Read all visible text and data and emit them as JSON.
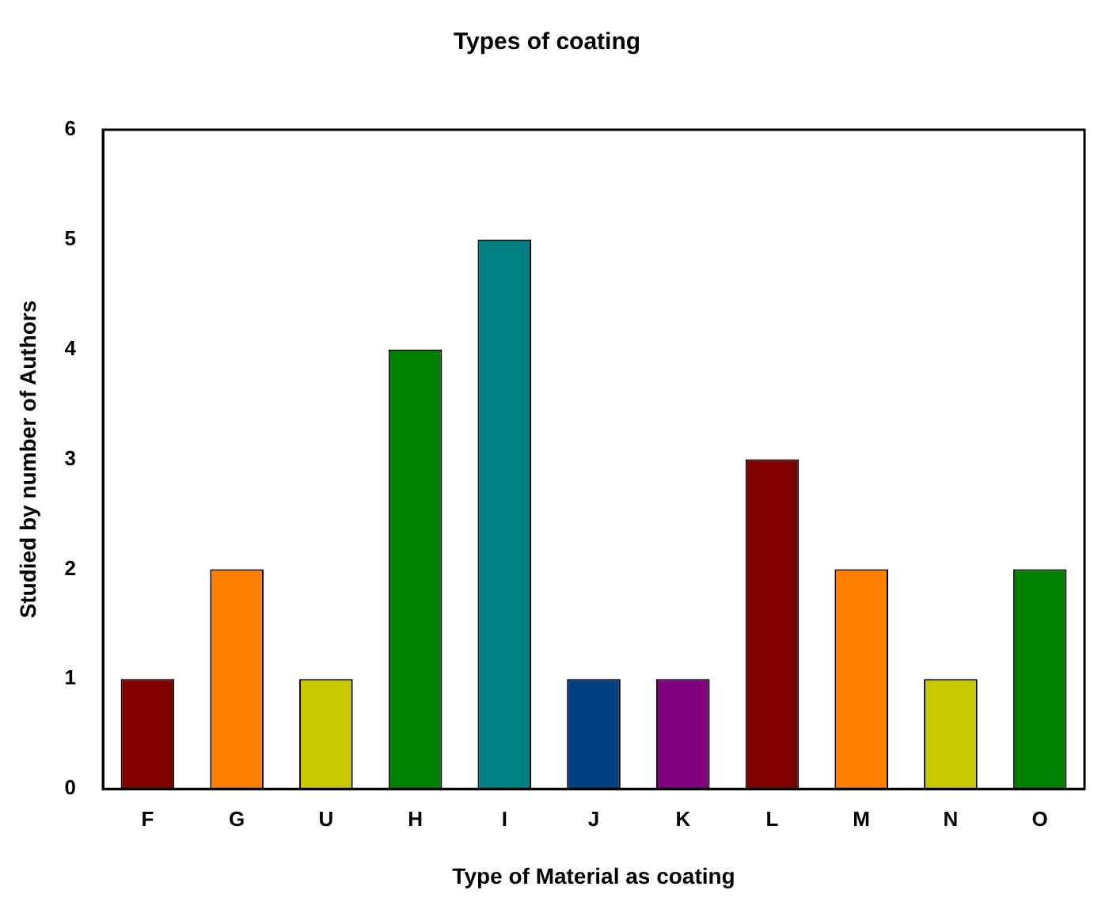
{
  "chart_data": {
    "type": "bar",
    "title": "Types of coating",
    "xlabel": "Type of Material as coating",
    "ylabel": "Studied by number of Authors",
    "categories": [
      "F",
      "G",
      "U",
      "H",
      "I",
      "J",
      "K",
      "L",
      "M",
      "N",
      "O"
    ],
    "values": [
      1,
      2,
      1,
      4,
      5,
      1,
      1,
      3,
      2,
      1,
      2
    ],
    "colors": [
      "#800000",
      "#ff8000",
      "#c8c800",
      "#008000",
      "#008080",
      "#004080",
      "#800080",
      "#800000",
      "#ff8000",
      "#c8c800",
      "#008000"
    ],
    "ylim": [
      0,
      6
    ],
    "yticks": [
      0,
      1,
      2,
      3,
      4,
      5,
      6
    ],
    "grid": false,
    "legend": false
  }
}
